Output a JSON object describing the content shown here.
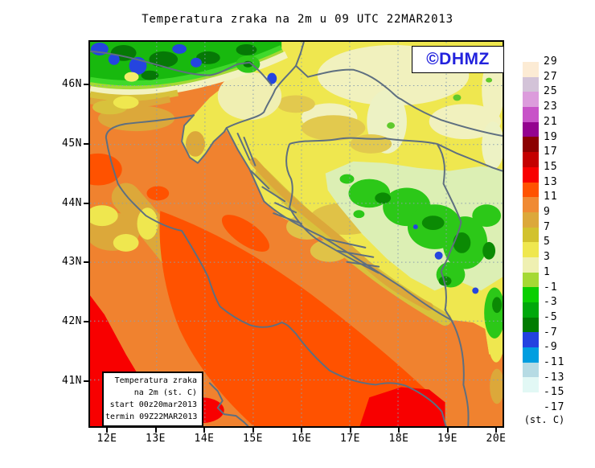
{
  "title": "Temperatura zraka na 2m u 09 UTC 22MAR2013",
  "watermark": {
    "label": "©DHMZ",
    "color": "#2222DD"
  },
  "info_box": {
    "lines": [
      "Temperatura zraka",
      "na 2m (st. C)",
      "start 00z20mar2013",
      "termin 09Z22MAR2013"
    ]
  },
  "legend": {
    "unit_label": "(st. C)",
    "labels": [
      "29",
      "27",
      "25",
      "23",
      "21",
      "19",
      "17",
      "15",
      "13",
      "11",
      "9",
      "7",
      "5",
      "3",
      "1",
      "-1",
      "-3",
      "-5",
      "-7",
      "-9",
      "-11",
      "-13",
      "-15",
      "-17"
    ],
    "colors": [
      "#FCEBD4",
      "#D3C3D8",
      "#DC9CDC",
      "#C853C8",
      "#94038F",
      "#8C0101",
      "#C40000",
      "#F80000",
      "#FF5200",
      "#F08A33",
      "#DCA83A",
      "#D2C22E",
      "#EFE74F",
      "#EFF0B2",
      "#A5D934",
      "#0ACF00",
      "#00A80B",
      "#017C01",
      "#2442E0",
      "#009EE0",
      "#B6DBE4",
      "#E2F8F5",
      "#FFFFFF"
    ]
  },
  "axes": {
    "lon_ticks": [
      "12E",
      "13E",
      "14E",
      "15E",
      "16E",
      "17E",
      "18E",
      "19E",
      "20E"
    ],
    "lat_ticks": [
      "46N",
      "45N",
      "44N",
      "43N",
      "42N",
      "41N"
    ]
  },
  "map": {
    "coastline_color": "#5E6F80",
    "graticule_color": "#8A9FB0",
    "sea_base_color": "#F0822F",
    "warm_band_color": "#FF5200",
    "hot_spot_color": "#F80000",
    "inland_color": "#EFE74F",
    "mountain_green": "#2CC818",
    "cold_blue": "#2545DF"
  }
}
